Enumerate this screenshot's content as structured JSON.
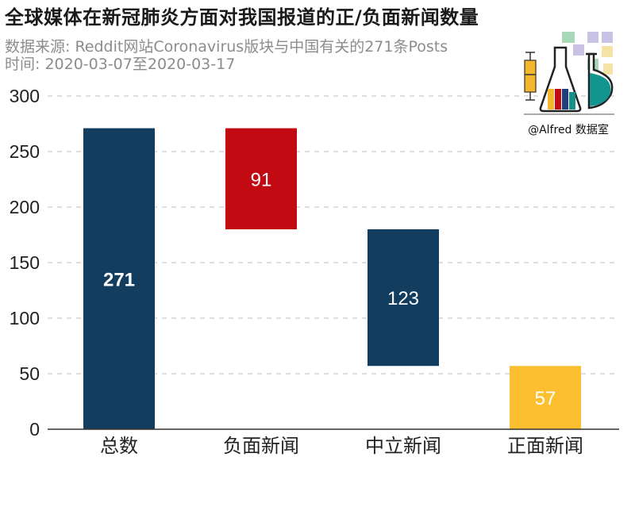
{
  "header": {
    "title": "全球媒体在新冠肺炎方面对我国报道的正/负面新闻数量",
    "subtitle_source": "数据来源: Reddit网站Coronavirus版块与中国有关的271条Posts",
    "subtitle_time": "时间: 2020-03-07至2020-03-17"
  },
  "logo": {
    "text": "@Alfred 数据室"
  },
  "colors": {
    "navy": "#123d5e",
    "red": "#c20a13",
    "gold": "#fbbf30",
    "grid": "#cccccc",
    "axis": "#333333",
    "text": "#222222"
  },
  "chart_data": {
    "type": "bar",
    "subtype": "waterfall",
    "categories": [
      "总数",
      "负面新闻",
      "中立新闻",
      "正面新闻"
    ],
    "values": [
      271,
      91,
      123,
      57
    ],
    "bases": [
      0,
      180,
      57,
      0
    ],
    "labels": [
      "271",
      "91",
      "123",
      "57"
    ],
    "bar_colors": [
      "#123d5e",
      "#c20a13",
      "#123d5e",
      "#fbbf30"
    ],
    "label_bold": [
      true,
      false,
      false,
      false
    ],
    "ylim": [
      0,
      300
    ],
    "yticks": [
      0,
      50,
      100,
      150,
      200,
      250,
      300
    ],
    "grid": true,
    "xlabel": "",
    "ylabel": ""
  }
}
